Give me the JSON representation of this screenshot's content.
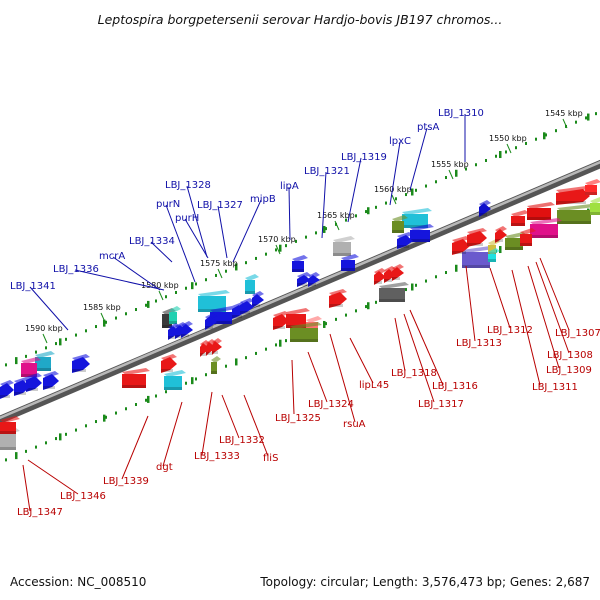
{
  "title": "Leptospira borgpetersenii serovar Hardjo-bovis JB197 chromos...",
  "footer": {
    "accession": "Accession: NC_008510",
    "summary": "Topology: circular; Length: 3,576,473 bp; Genes: 2,687"
  },
  "colors": {
    "forward_label": "#1010a8",
    "reverse_label": "#b80000",
    "tick": "#1a8a1a",
    "backbone": "#8a8a8a"
  },
  "kbp_labels": [
    "1545 kbp",
    "1550 kbp",
    "1555 kbp",
    "1560 kbp",
    "1565 kbp",
    "1570 kbp",
    "1575 kbp",
    "1580 kbp",
    "1585 kbp",
    "1590 kbp"
  ],
  "forward_genes": [
    "LBJ_1310",
    "ptsA",
    "lpxC",
    "LBJ_1319",
    "LBJ_1321",
    "lipA",
    "mipB",
    "LBJ_1327",
    "LBJ_1328",
    "purN",
    "purH",
    "LBJ_1334",
    "mcrA",
    "LBJ_1336",
    "LBJ_1341"
  ],
  "reverse_genes": [
    "LBJ_1307",
    "LBJ_1308",
    "LBJ_1309",
    "LBJ_1311",
    "LBJ_1312",
    "LBJ_1313",
    "LBJ_1316",
    "LBJ_1317",
    "LBJ_1318",
    "lipL45",
    "rsuA",
    "LBJ_1324",
    "LBJ_1325",
    "fliS",
    "LBJ_1332",
    "LBJ_1333",
    "dgt",
    "LBJ_1339",
    "LBJ_1346",
    "LBJ_1347"
  ]
}
